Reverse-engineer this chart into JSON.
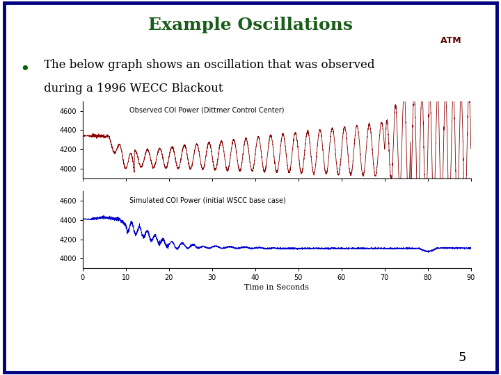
{
  "title": "Example Oscillations",
  "title_color": "#1a5c1a",
  "title_fontsize": 18,
  "border_color": "#000080",
  "bg_color": "#FFFFFF",
  "bullet_text_line1": "The below graph shows an oscillation that was observed",
  "bullet_text_line2": "during a 1996 WECC Blackout",
  "plot1_label": "Observed COI Power (Dittmer Control Center)",
  "plot2_label": "Simulated COI Power (initial WSCC base case)",
  "xlabel": "Time in Seconds",
  "dark_red": "#8B0000",
  "dark_blue": "#0000CD",
  "ylim": [
    3900,
    4700
  ],
  "xlim": [
    0,
    90
  ],
  "xticks": [
    0,
    10,
    20,
    30,
    40,
    50,
    60,
    70,
    80,
    90
  ],
  "yticks": [
    4000,
    4200,
    4400,
    4600
  ],
  "page_number": "5"
}
